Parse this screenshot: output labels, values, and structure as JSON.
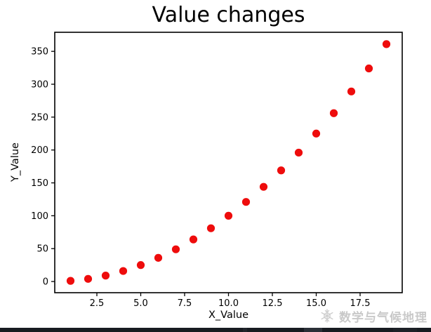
{
  "chart_data": {
    "type": "scatter",
    "title": "Value changes",
    "xlabel": "X_Value",
    "ylabel": "Y_Value",
    "x": [
      1,
      2,
      3,
      4,
      5,
      6,
      7,
      8,
      9,
      10,
      11,
      12,
      13,
      14,
      15,
      16,
      17,
      18,
      19
    ],
    "y": [
      1,
      4,
      9,
      16,
      25,
      36,
      49,
      64,
      81,
      100,
      121,
      144,
      169,
      196,
      225,
      256,
      289,
      324,
      361
    ],
    "xlim": [
      0.1,
      19.9
    ],
    "ylim": [
      -17,
      379
    ],
    "x_ticks": [
      2.5,
      5,
      7.5,
      10,
      12.5,
      15,
      17.5
    ],
    "x_tick_labels": [
      "2.5",
      "5.0",
      "7.5",
      "10.0",
      "12.5",
      "15.0",
      "17.5"
    ],
    "y_ticks": [
      0,
      50,
      100,
      150,
      200,
      250,
      300,
      350
    ],
    "y_tick_labels": [
      "0",
      "50",
      "100",
      "150",
      "200",
      "250",
      "300",
      "350"
    ],
    "marker_color": "#ee0c0c",
    "axis_color": "#000000",
    "background": "#ffffff",
    "grid": false,
    "legend": null
  },
  "watermark": {
    "icon": "snowflake-icon",
    "text": "数学与气候地理",
    "color": "#c9c9c9"
  },
  "bottom_bar": {
    "color": "#171b21"
  }
}
